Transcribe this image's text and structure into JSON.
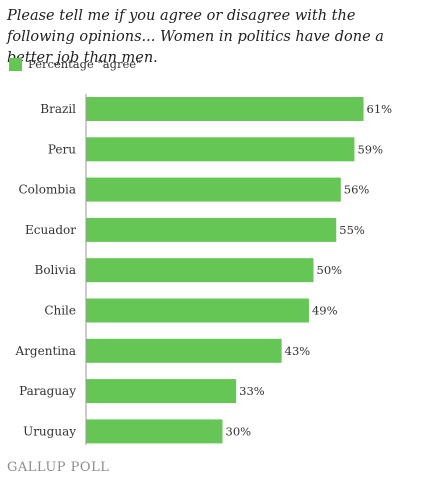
{
  "chart_data": {
    "type": "bar",
    "orientation": "horizontal",
    "title": "Please tell me if you agree or disagree with the following opinions... Women in politics have done a better job than men.",
    "categories": [
      "Brazil",
      "Peru",
      "Colombia",
      "Ecuador",
      "Bolivia",
      "Chile",
      "Argentina",
      "Paraguay",
      "Uruguay"
    ],
    "series": [
      {
        "name": "Percentage \"agree\"",
        "values": [
          61,
          59,
          56,
          55,
          50,
          49,
          43,
          33,
          30
        ],
        "data_labels": [
          "61%",
          "59%",
          "56%",
          "55%",
          "50%",
          "49%",
          "43%",
          "33%",
          "30%"
        ],
        "color": "#66c655"
      }
    ],
    "xlim": [
      0,
      100
    ],
    "grid": false,
    "axis_line_color": "#999999",
    "legend_position": "top-left"
  },
  "footer": {
    "source_label": "GALLUP POLL"
  }
}
